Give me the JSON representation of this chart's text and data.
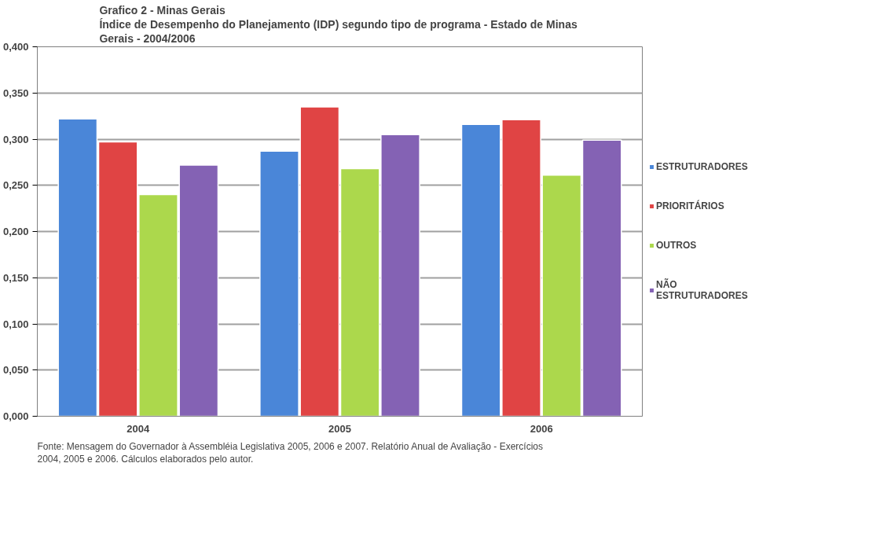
{
  "chart_data": {
    "type": "bar",
    "title": "Grafico 2 - Minas Gerais\nÍndice de Desempenho do Planejamento (IDP) segundo tipo de programa  - Estado de Minas\nGerais - 2004/2006",
    "categories": [
      "2004",
      "2005",
      "2006"
    ],
    "series": [
      {
        "name": "ESTRUTURADORES",
        "color": "#4a86d8",
        "values": [
          0.322,
          0.287,
          0.316
        ]
      },
      {
        "name": "PRIORITÁRIOS",
        "color": "#e04444",
        "values": [
          0.297,
          0.335,
          0.321
        ]
      },
      {
        "name": "OUTROS",
        "color": "#acd84c",
        "values": [
          0.24,
          0.268,
          0.261
        ]
      },
      {
        "name": "NÃO\nESTRUTURADORES",
        "color": "#8462b4",
        "values": [
          0.272,
          0.305,
          0.299
        ]
      }
    ],
    "ylim": [
      0,
      0.4
    ],
    "yticks": [
      {
        "value": 0,
        "label": "0,000"
      },
      {
        "value": 0.05,
        "label": "0,050"
      },
      {
        "value": 0.1,
        "label": "0,100"
      },
      {
        "value": 0.15,
        "label": "0,150"
      },
      {
        "value": 0.2,
        "label": "0,200"
      },
      {
        "value": 0.25,
        "label": "0,250"
      },
      {
        "value": 0.3,
        "label": "0,300"
      },
      {
        "value": 0.35,
        "label": "0,350"
      },
      {
        "value": 0.4,
        "label": "0,400"
      }
    ],
    "grid": "y",
    "legend": "right",
    "annotations": [
      "Fonte: Mensagem do Governador à Assembléia Legislativa 2005, 2006 e 2007. Relatório Anual de Avaliação - Exercícios\n2004, 2005 e 2006. Cálculos elaborados pelo autor."
    ]
  }
}
